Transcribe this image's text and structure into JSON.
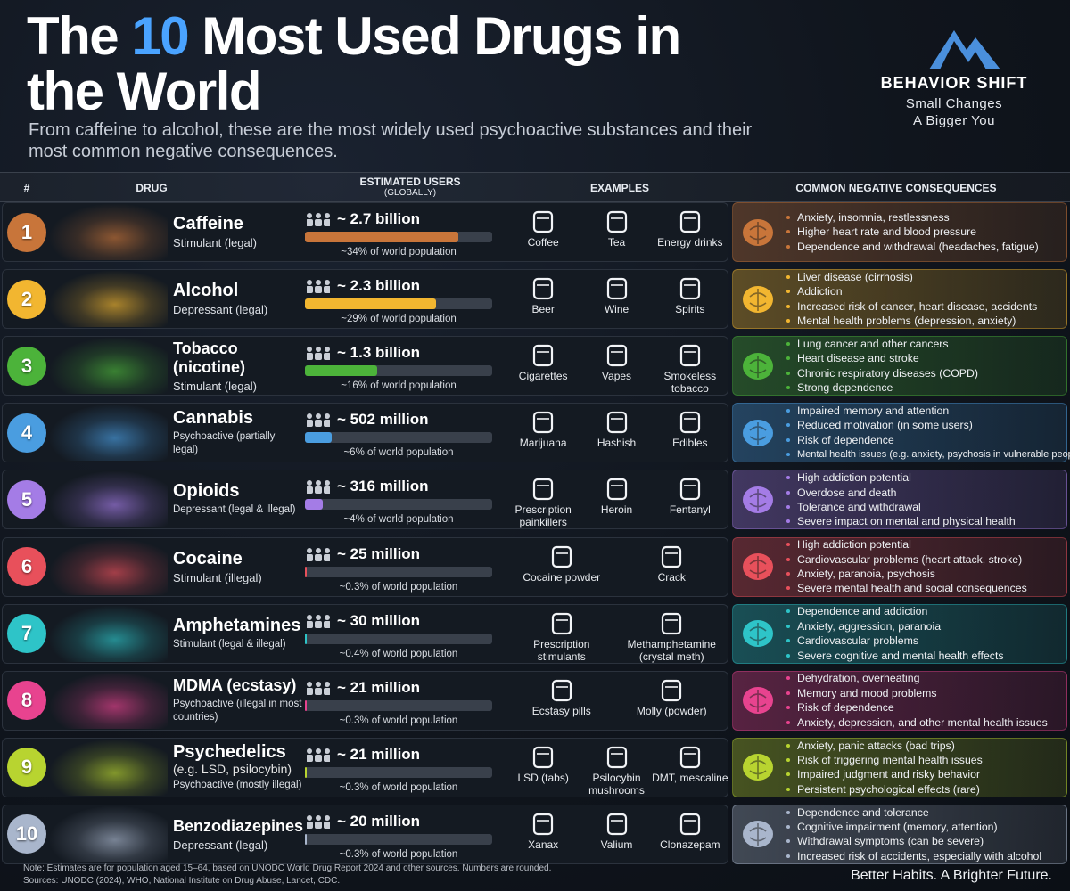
{
  "header": {
    "title_start": "The",
    "title_number": "10",
    "title_end": "Most Used Drugs in the World",
    "subtitle": "From caffeine to alcohol, these are the most widely used psychoactive substances and their most common negative consequences.",
    "brand": "BEHAVIOR SHIFT",
    "tagline_1": "Small Changes",
    "tagline_2": "A Bigger You"
  },
  "table": {
    "columns": {
      "rank": "#",
      "drug": "DRUG",
      "users": "ESTIMATED USERS",
      "users_note": "(GLOBALLY)",
      "examples": "EXAMPLES",
      "consequences": "COMMON NEGATIVE CONSEQUENCES"
    },
    "rows": [
      {
        "rank": 1,
        "color": "#c8753a",
        "name": "Caffeine",
        "category": "Stimulant (legal)",
        "users": "~ 2.7 billion",
        "share": 34,
        "share_label": "~34% of world population",
        "examples": [
          "Coffee",
          "Tea",
          "Energy drinks"
        ],
        "consequences": [
          "Anxiety, insomnia, restlessness",
          "Higher heart rate and blood pressure",
          "Dependence and withdrawal (headaches, fatigue)"
        ]
      },
      {
        "rank": 2,
        "color": "#f2b630",
        "name": "Alcohol",
        "category": "Depressant (legal)",
        "users": "~ 2.3 billion",
        "share": 29,
        "share_label": "~29% of world population",
        "examples": [
          "Beer",
          "Wine",
          "Spirits"
        ],
        "consequences": [
          "Liver disease (cirrhosis)",
          "Addiction",
          "Increased risk of cancer, heart disease, accidents",
          "Mental health problems (depression, anxiety)"
        ]
      },
      {
        "rank": 3,
        "color": "#4cb33a",
        "name": "Tobacco (nicotine)",
        "category": "Stimulant (legal)",
        "users": "~ 1.3 billion",
        "share": 16,
        "share_label": "~16% of world population",
        "examples": [
          "Cigarettes",
          "Vapes",
          "Smokeless tobacco"
        ],
        "consequences": [
          "Lung cancer and other cancers",
          "Heart disease and stroke",
          "Chronic respiratory diseases (COPD)",
          "Strong dependence"
        ]
      },
      {
        "rank": 4,
        "color": "#4a9de0",
        "name": "Cannabis",
        "category": "Psychoactive (partially legal)",
        "users": "~ 502 million",
        "share": 6,
        "share_label": "~6% of world population",
        "examples": [
          "Marijuana",
          "Hashish",
          "Edibles"
        ],
        "consequences": [
          "Impaired memory and attention",
          "Reduced motivation (in some users)",
          "Risk of dependence",
          "Mental health issues (e.g. anxiety, psychosis in vulnerable people)"
        ]
      },
      {
        "rank": 5,
        "color": "#a47ce6",
        "name": "Opioids",
        "category": "Depressant (legal & illegal)",
        "users": "~ 316 million",
        "share": 4,
        "share_label": "~4% of world population",
        "examples": [
          "Prescription painkillers",
          "Heroin",
          "Fentanyl"
        ],
        "consequences": [
          "High addiction potential",
          "Overdose and death",
          "Tolerance and withdrawal",
          "Severe impact on mental and physical health"
        ]
      },
      {
        "rank": 6,
        "color": "#e8505b",
        "name": "Cocaine",
        "category": "Stimulant (illegal)",
        "users": "~ 25 million",
        "share": 0.3,
        "share_label": "~0.3% of world population",
        "examples": [
          "Cocaine powder",
          "Crack"
        ],
        "consequences": [
          "High addiction potential",
          "Cardiovascular problems (heart attack, stroke)",
          "Anxiety, paranoia, psychosis",
          "Severe mental health and social consequences"
        ]
      },
      {
        "rank": 7,
        "color": "#2ec4c8",
        "name": "Amphetamines",
        "category": "Stimulant (legal & illegal)",
        "users": "~ 30 million",
        "share": 0.4,
        "share_label": "~0.4% of world population",
        "examples": [
          "Prescription stimulants",
          "Methamphetamine (crystal meth)"
        ],
        "consequences": [
          "Dependence and addiction",
          "Anxiety, aggression, paranoia",
          "Cardiovascular problems",
          "Severe cognitive and mental health effects"
        ]
      },
      {
        "rank": 8,
        "color": "#e8438f",
        "name": "MDMA (ecstasy)",
        "category": "Psychoactive (illegal in most countries)",
        "users": "~ 21 million",
        "share": 0.3,
        "share_label": "~0.3% of world population",
        "examples": [
          "Ecstasy pills",
          "Molly (powder)"
        ],
        "consequences": [
          "Dehydration, overheating",
          "Memory and mood problems",
          "Risk of dependence",
          "Anxiety, depression, and other mental health issues"
        ]
      },
      {
        "rank": 9,
        "color": "#b8d430",
        "name": "Psychedelics",
        "detail": "(e.g. LSD, psilocybin)",
        "category": "Psychoactive (mostly illegal)",
        "users": "~ 21 million",
        "share": 0.3,
        "share_label": "~0.3% of world population",
        "examples": [
          "LSD (tabs)",
          "Psilocybin mushrooms",
          "DMT, mescaline"
        ],
        "consequences": [
          "Anxiety, panic attacks (bad trips)",
          "Risk of triggering mental health issues",
          "Impaired judgment and risky behavior",
          "Persistent psychological effects (rare)"
        ]
      },
      {
        "rank": 10,
        "color": "#a9b6cc",
        "name": "Benzodiazepines",
        "category": "Depressant (legal)",
        "users": "~ 20 million",
        "share": 0.3,
        "share_label": "~0.3% of world population",
        "examples": [
          "Xanax",
          "Valium",
          "Clonazepam"
        ],
        "consequences": [
          "Dependence and tolerance",
          "Cognitive impairment (memory, attention)",
          "Withdrawal symptoms (can be severe)",
          "Increased risk of accidents, especially with alcohol"
        ]
      }
    ]
  },
  "footer": {
    "note": "Note: Estimates are for population aged 15–64, based on UNODC World Drug Report 2024 and other sources. Numbers are rounded.",
    "sources": "Sources: UNODC (2024), WHO, National Institute on Drug Abuse, Lancet, CDC.",
    "slogan": "Better Habits. A Brighter Future."
  }
}
